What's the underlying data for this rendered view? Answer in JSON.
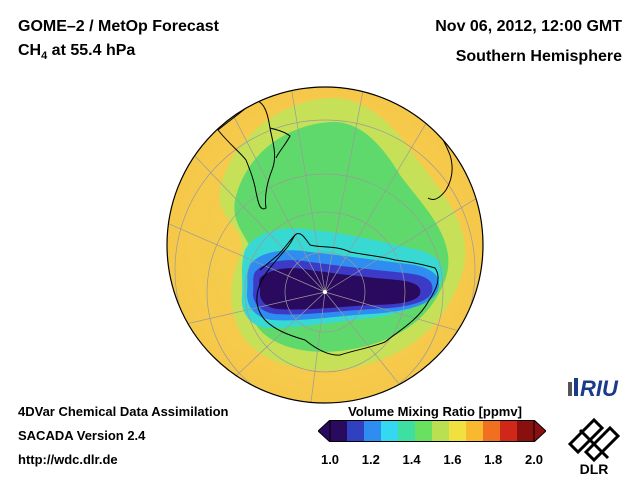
{
  "header": {
    "title_line1": "GOME–2 / MetOp Forecast",
    "title_ch": "CH",
    "title_sub": "4",
    "title_rest": " at 55.4 hPa",
    "datetime": "Nov 06, 2012, 12:00 GMT",
    "hemisphere": "Southern Hemisphere"
  },
  "footer": {
    "line1": "4DVar Chemical Data Assimilation",
    "line2": "SACADA Version 2.4",
    "line3": "http://wdc.dlr.de"
  },
  "colorbar": {
    "title": "Volume Mixing Ratio [ppmv]",
    "ticks": [
      "1.0",
      "1.2",
      "1.4",
      "1.6",
      "1.8",
      "2.0"
    ],
    "min": 1.0,
    "max": 2.0,
    "colors": [
      "#2a0a5e",
      "#3040c0",
      "#2f8cf0",
      "#34d8f0",
      "#3de0a0",
      "#6ae060",
      "#b8e050",
      "#f0e040",
      "#f8b830",
      "#f07020",
      "#d02818",
      "#8a1010"
    ]
  },
  "map": {
    "projection": "orthographic, south pole centered",
    "field": "CH4 volume mixing ratio",
    "colors": {
      "background": "#f3d24f",
      "outer_band": "#b9e05a",
      "green": "#5ed86c",
      "cyan": "#37d9d2",
      "blue": "#2f8cf0",
      "deep_blue": "#3b3bc8",
      "core": "#2a0a5e"
    }
  },
  "logos": {
    "riu": "RIU",
    "dlr": "DLR"
  }
}
